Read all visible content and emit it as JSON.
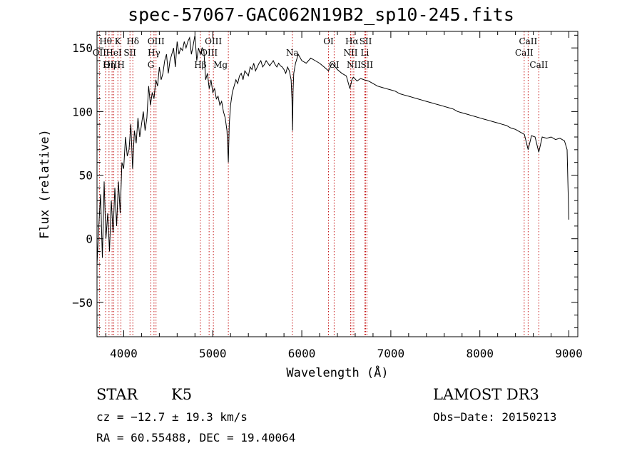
{
  "chart_data": {
    "type": "line",
    "title": "spec-57067-GAC062N19B2_sp10-245.fits",
    "xlabel": "Wavelength (Å)",
    "ylabel": "Flux (relative)",
    "xlim": [
      3700,
      9100
    ],
    "ylim": [
      -77,
      163
    ],
    "xticks": [
      4000,
      5000,
      6000,
      7000,
      8000,
      9000
    ],
    "yticks": [
      -50,
      0,
      50,
      100,
      150
    ],
    "series": [
      {
        "name": "flux",
        "x": [
          3700,
          3720,
          3740,
          3760,
          3780,
          3800,
          3820,
          3840,
          3860,
          3880,
          3900,
          3920,
          3940,
          3960,
          3980,
          4000,
          4020,
          4040,
          4060,
          4080,
          4100,
          4120,
          4140,
          4160,
          4180,
          4200,
          4220,
          4240,
          4260,
          4280,
          4300,
          4320,
          4340,
          4360,
          4380,
          4400,
          4420,
          4440,
          4460,
          4480,
          4500,
          4520,
          4540,
          4560,
          4580,
          4600,
          4620,
          4640,
          4660,
          4680,
          4700,
          4720,
          4740,
          4760,
          4780,
          4800,
          4820,
          4840,
          4860,
          4880,
          4900,
          4920,
          4940,
          4960,
          4980,
          5000,
          5020,
          5040,
          5060,
          5080,
          5100,
          5120,
          5140,
          5160,
          5175,
          5185,
          5200,
          5220,
          5240,
          5260,
          5280,
          5300,
          5320,
          5340,
          5360,
          5380,
          5400,
          5420,
          5440,
          5460,
          5480,
          5500,
          5520,
          5540,
          5560,
          5580,
          5600,
          5620,
          5640,
          5660,
          5680,
          5700,
          5720,
          5740,
          5760,
          5780,
          5800,
          5820,
          5840,
          5860,
          5880,
          5890,
          5896,
          5902,
          5910,
          5930,
          5960,
          6000,
          6050,
          6100,
          6150,
          6200,
          6250,
          6300,
          6340,
          6400,
          6450,
          6500,
          6540,
          6563,
          6580,
          6620,
          6660,
          6700,
          6750,
          6800,
          6850,
          6900,
          6950,
          7000,
          7050,
          7100,
          7150,
          7200,
          7250,
          7300,
          7350,
          7400,
          7450,
          7500,
          7550,
          7600,
          7650,
          7700,
          7750,
          7800,
          7850,
          7900,
          7950,
          8000,
          8050,
          8100,
          8150,
          8200,
          8250,
          8300,
          8350,
          8400,
          8450,
          8500,
          8542,
          8580,
          8620,
          8662,
          8700,
          8750,
          8800,
          8850,
          8900,
          8950,
          8980,
          8990,
          9000
        ],
        "values": [
          -20,
          10,
          35,
          -15,
          45,
          0,
          20,
          -10,
          30,
          5,
          40,
          10,
          45,
          20,
          60,
          55,
          80,
          65,
          70,
          90,
          55,
          85,
          75,
          95,
          80,
          90,
          100,
          85,
          95,
          120,
          105,
          115,
          110,
          125,
          120,
          135,
          125,
          130,
          140,
          145,
          130,
          140,
          145,
          150,
          135,
          155,
          145,
          150,
          148,
          155,
          150,
          155,
          158,
          145,
          152,
          160,
          140,
          150,
          145,
          150,
          148,
          125,
          130,
          118,
          125,
          115,
          118,
          110,
          112,
          105,
          108,
          100,
          95,
          85,
          60,
          90,
          105,
          115,
          120,
          125,
          122,
          128,
          130,
          125,
          132,
          130,
          128,
          135,
          133,
          138,
          132,
          135,
          138,
          140,
          135,
          137,
          140,
          138,
          136,
          138,
          140,
          137,
          135,
          138,
          136,
          135,
          133,
          130,
          135,
          132,
          125,
          110,
          85,
          115,
          130,
          138,
          145,
          140,
          138,
          142,
          140,
          138,
          135,
          132,
          138,
          133,
          130,
          128,
          118,
          125,
          127,
          124,
          126,
          125,
          124,
          122,
          120,
          119,
          118,
          117,
          116,
          114,
          113,
          112,
          111,
          110,
          109,
          108,
          107,
          106,
          105,
          104,
          103,
          102,
          100,
          99,
          98,
          97,
          96,
          95,
          94,
          93,
          92,
          91,
          90,
          89,
          87,
          86,
          84,
          82,
          70,
          81,
          80,
          68,
          80,
          79,
          80,
          78,
          79,
          77,
          70,
          40,
          15
        ]
      }
    ],
    "lines": [
      {
        "name": "Hθ",
        "x": 3797,
        "row": 0
      },
      {
        "name": "OII",
        "x": 3727,
        "row": 1
      },
      {
        "name": "OIII",
        "x": 3869,
        "row": 2
      },
      {
        "name": "K",
        "x": 3934,
        "row": 0
      },
      {
        "name": "HeI",
        "x": 3889,
        "row": 1
      },
      {
        "name": "Hη",
        "x": 3835,
        "row": 2
      },
      {
        "name": "SII",
        "x": 4070,
        "row": 1
      },
      {
        "name": "H",
        "x": 3969,
        "row": 2
      },
      {
        "name": "Hδ",
        "x": 4102,
        "row": 0
      },
      {
        "name": "OIII",
        "x": 4363,
        "row": 0
      },
      {
        "name": "Hγ",
        "x": 4340,
        "row": 1
      },
      {
        "name": "G",
        "x": 4305,
        "row": 2
      },
      {
        "name": "OIII",
        "x": 5007,
        "row": 0
      },
      {
        "name": "OIII",
        "x": 4959,
        "row": 1
      },
      {
        "name": "Hβ",
        "x": 4861,
        "row": 2
      },
      {
        "name": "Mg",
        "x": 5175,
        "row": 2
      },
      {
        "name": "Na",
        "x": 5894,
        "row": 1
      },
      {
        "name": "OI",
        "x": 6300,
        "row": 0
      },
      {
        "name": "OI",
        "x": 6363,
        "row": 2
      },
      {
        "name": "Hα",
        "x": 6563,
        "row": 0
      },
      {
        "name": "SII",
        "x": 6717,
        "row": 0
      },
      {
        "name": "NII",
        "x": 6548,
        "row": 1
      },
      {
        "name": "Li",
        "x": 6708,
        "row": 1
      },
      {
        "name": "NII",
        "x": 6584,
        "row": 2
      },
      {
        "name": "SII",
        "x": 6731,
        "row": 2
      },
      {
        "name": "CaII",
        "x": 8542,
        "row": 0
      },
      {
        "name": "CaII",
        "x": 8498,
        "row": 1
      },
      {
        "name": "CaII",
        "x": 8662,
        "row": 2
      }
    ]
  },
  "info": {
    "object_class": "STAR",
    "subclass": "K5",
    "survey": "LAMOST DR3",
    "redshift": "cz = −12.7 ± 19.3 km/s",
    "obs_date": "Obs−Date: 20150213",
    "coords": "RA =  60.55488, DEC =  19.40064"
  },
  "colors": {
    "spectrum": "#000000",
    "line_markers": "#c00000",
    "axes": "#000000"
  }
}
